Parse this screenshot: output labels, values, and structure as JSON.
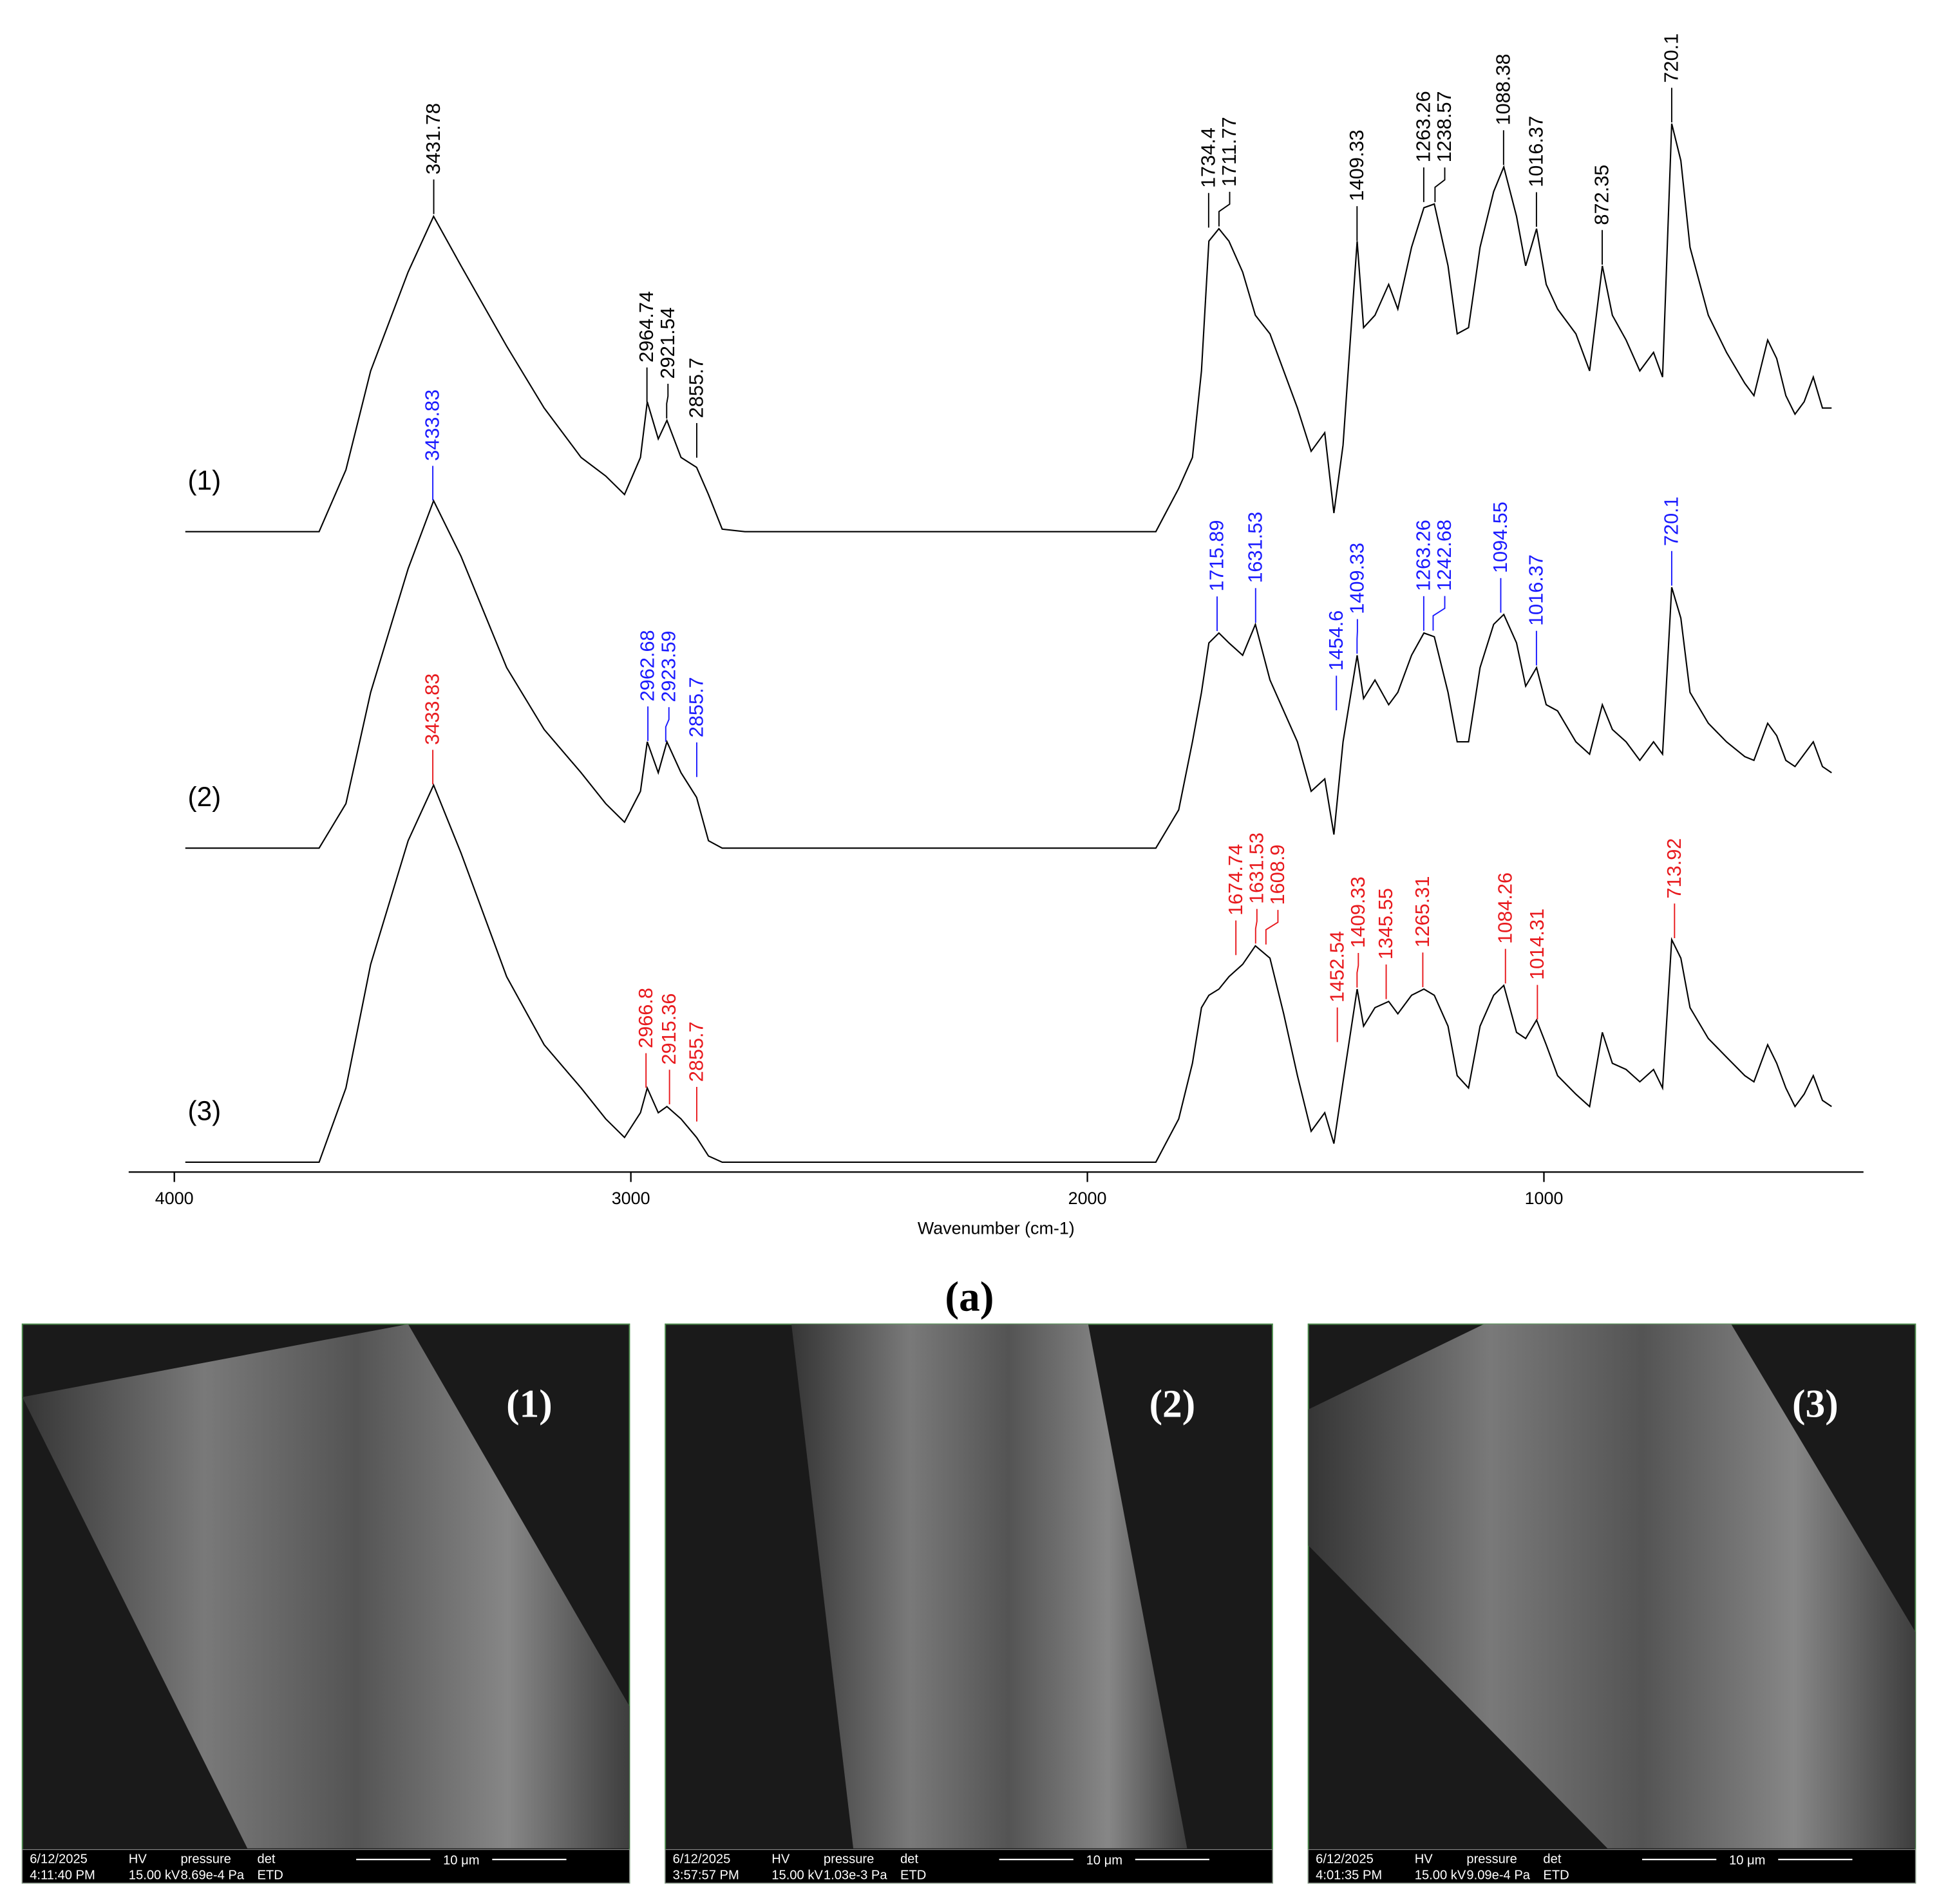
{
  "chart_data": {
    "type": "line",
    "xlabel": "Wavenumber (cm-1)",
    "xlim": [
      4100,
      300
    ],
    "xticks": [
      4000,
      3000,
      2000,
      1000
    ],
    "ylim": [
      0,
      900
    ],
    "x": [
      3976,
      3683,
      3624,
      3570,
      3488,
      3432,
      3372,
      3272,
      3190,
      3109,
      3055,
      3014,
      2979,
      2964,
      2940,
      2921,
      2890,
      2856,
      2830,
      2800,
      2750,
      1850,
      1800,
      1770,
      1750,
      1734,
      1712,
      1690,
      1660,
      1632,
      1600,
      1570,
      1540,
      1510,
      1480,
      1460,
      1440,
      1409,
      1395,
      1370,
      1340,
      1320,
      1290,
      1263,
      1240,
      1210,
      1190,
      1165,
      1140,
      1110,
      1088,
      1060,
      1040,
      1016,
      995,
      970,
      930,
      900,
      872,
      850,
      820,
      790,
      760,
      740,
      720,
      700,
      680,
      640,
      600,
      560,
      540,
      510,
      490,
      470,
      450,
      430,
      410,
      390,
      370
    ],
    "series": [
      {
        "name": "(1)",
        "color": "#000000",
        "values": [
          518,
          518,
          568,
          648,
          728,
          773,
          733,
          668,
          618,
          578,
          563,
          548,
          578,
          623,
          593,
          608,
          578,
          570,
          548,
          520,
          518,
          518,
          553,
          578,
          648,
          753,
          763,
          753,
          728,
          693,
          678,
          648,
          618,
          583,
          598,
          533,
          588,
          753,
          683,
          693,
          718,
          698,
          748,
          780,
          783,
          733,
          678,
          683,
          748,
          793,
          813,
          773,
          733,
          763,
          718,
          698,
          678,
          648,
          733,
          693,
          673,
          648,
          663,
          643,
          848,
          818,
          748,
          693,
          663,
          638,
          628,
          673,
          658,
          628,
          613,
          623,
          643,
          618,
          618
        ],
        "peaks": [
          3431.78,
          2964.74,
          2921.54,
          2855.7,
          1734.4,
          1711.77,
          1409.33,
          1263.26,
          1238.57,
          1088.38,
          1016.37,
          872.35,
          720.1
        ]
      },
      {
        "name": "(2)",
        "color": "#1a1aff",
        "values": [
          262,
          262,
          298,
          388,
          488,
          543,
          498,
          408,
          358,
          323,
          298,
          283,
          308,
          348,
          323,
          348,
          323,
          303,
          268,
          262,
          262,
          262,
          293,
          348,
          388,
          428,
          436,
          428,
          418,
          443,
          398,
          373,
          348,
          308,
          318,
          273,
          348,
          418,
          383,
          398,
          378,
          388,
          418,
          436,
          433,
          388,
          348,
          348,
          408,
          443,
          451,
          428,
          393,
          408,
          378,
          373,
          348,
          338,
          378,
          358,
          348,
          333,
          348,
          338,
          473,
          448,
          388,
          363,
          348,
          336,
          333,
          363,
          353,
          333,
          328,
          338,
          348,
          328,
          323
        ],
        "peaks": [
          3433.83,
          2962.68,
          2923.59,
          2855.7,
          1715.89,
          1631.53,
          1454.6,
          1409.33,
          1263.26,
          1242.68,
          1094.55,
          1016.37,
          720.1
        ]
      },
      {
        "name": "(3)",
        "color": "#e8191d",
        "values": [
          8,
          8,
          68,
          168,
          268,
          313,
          258,
          158,
          103,
          68,
          43,
          28,
          48,
          68,
          48,
          53,
          43,
          28,
          13,
          8,
          8,
          8,
          43,
          88,
          133,
          143,
          148,
          158,
          168,
          183,
          173,
          128,
          78,
          33,
          48,
          23,
          73,
          148,
          118,
          133,
          138,
          128,
          143,
          148,
          143,
          118,
          78,
          68,
          118,
          143,
          151,
          113,
          108,
          123,
          103,
          78,
          63,
          53,
          113,
          88,
          83,
          73,
          83,
          68,
          188,
          173,
          133,
          108,
          93,
          78,
          73,
          103,
          88,
          68,
          53,
          63,
          78,
          58,
          53
        ],
        "peaks": [
          3433.83,
          2966.8,
          2915.36,
          2855.7,
          1674.74,
          1631.53,
          1608.9,
          1452.54,
          1409.33,
          1345.55,
          1265.31,
          1084.26,
          1014.31,
          713.92
        ]
      }
    ]
  },
  "caption": "(a)",
  "panels": [
    {
      "label": "(1)",
      "date": "6/12/2025",
      "time": "4:11:40 PM",
      "hv_label": "HV",
      "hv": "15.00 kV",
      "pressure_label": "pressure",
      "pressure": "8.69e-4 Pa",
      "det_label": "det",
      "det": "ETD",
      "scale": "10 μm"
    },
    {
      "label": "(2)",
      "date": "6/12/2025",
      "time": "3:57:57 PM",
      "hv_label": "HV",
      "hv": "15.00 kV",
      "pressure_label": "pressure",
      "pressure": "1.03e-3 Pa",
      "det_label": "det",
      "det": "ETD",
      "scale": "10 μm"
    },
    {
      "label": "(3)",
      "date": "6/12/2025",
      "time": "4:01:35 PM",
      "hv_label": "HV",
      "hv": "15.00 kV",
      "pressure_label": "pressure",
      "pressure": "9.09e-4 Pa",
      "det_label": "det",
      "det": "ETD",
      "scale": "10 μm"
    }
  ]
}
